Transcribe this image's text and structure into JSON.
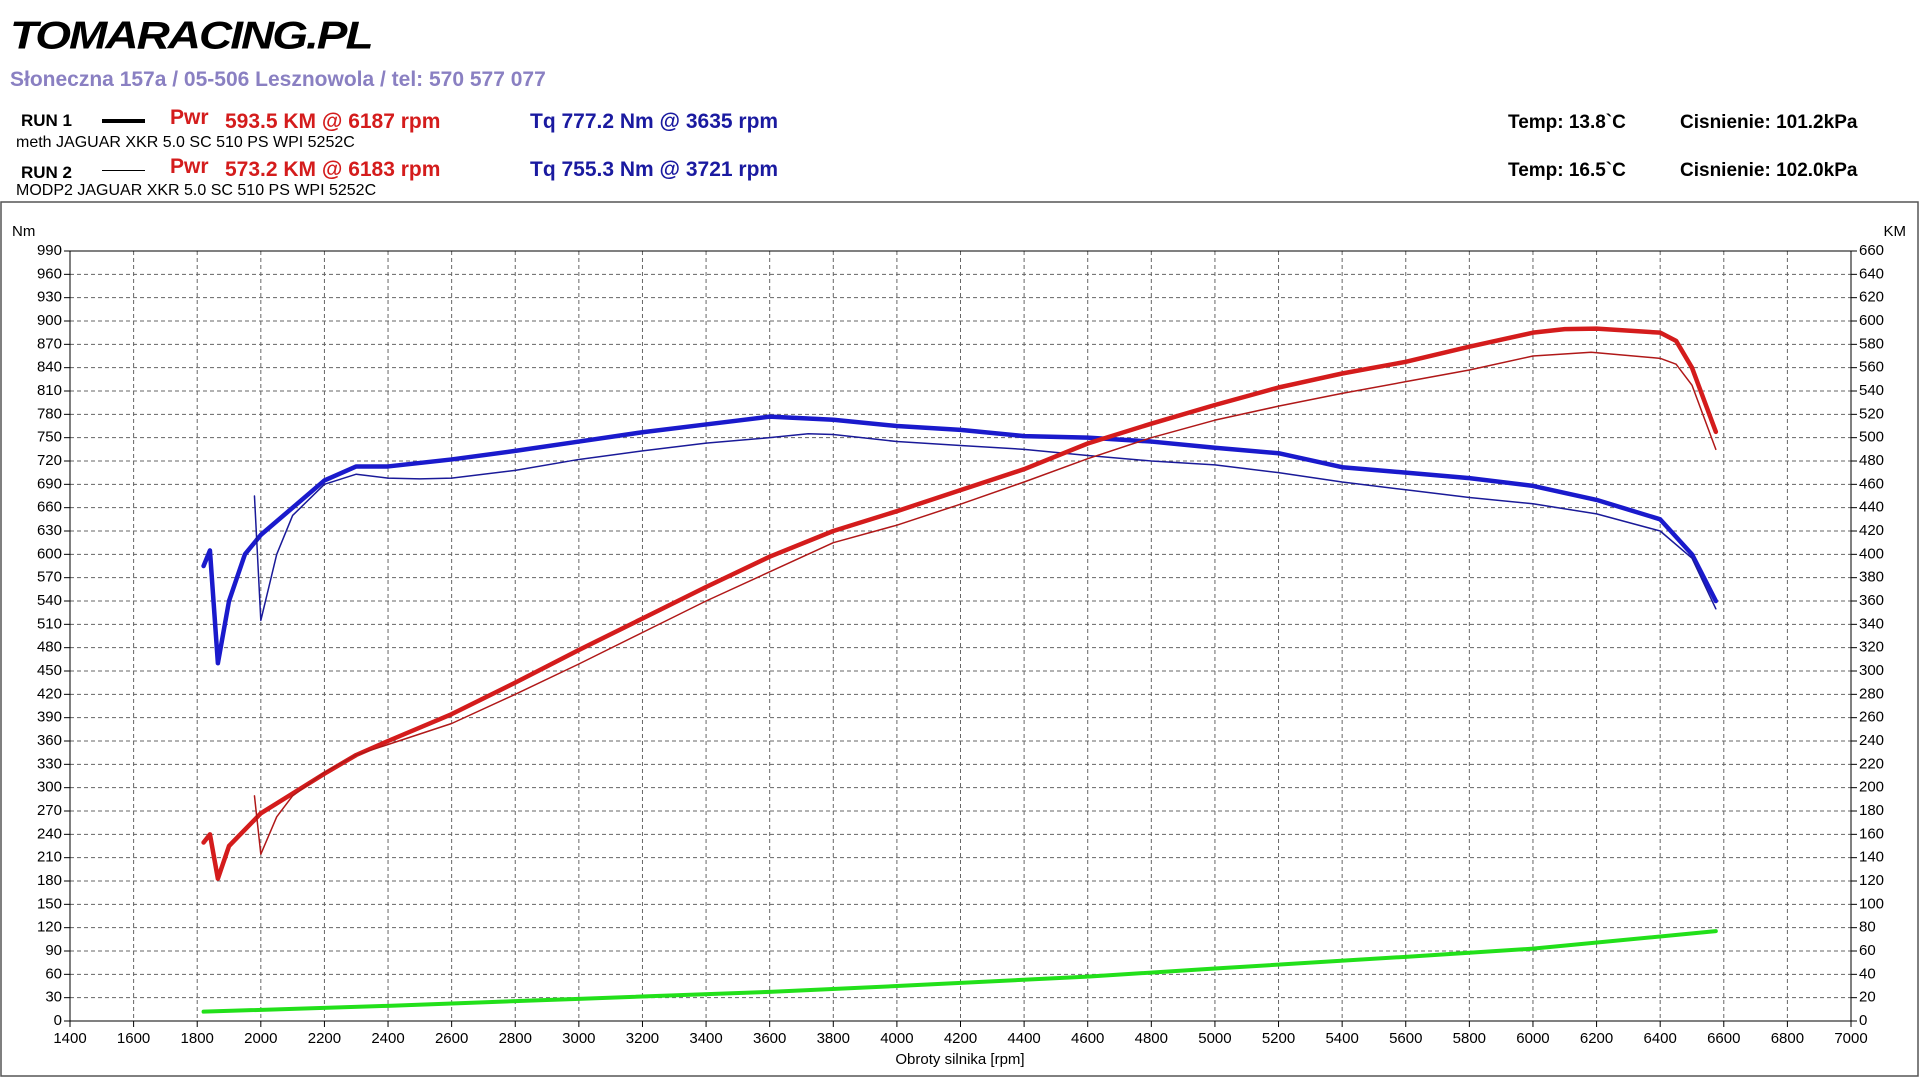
{
  "header": {
    "logo": "TOMARACING.PL",
    "address": "Słoneczna 157a / 05-506 Lesznowola / tel: 570 577 077",
    "runs": [
      {
        "label": "RUN 1",
        "pwr_label": "Pwr",
        "pwr": "593.5 KM @ 6187 rpm",
        "tq": "Tq 777.2 Nm @ 3635 rpm",
        "description": "meth JAGUAR XKR 5.0 SC 510 PS WPI 5252C",
        "temp": "Temp: 13.8`C",
        "pressure": "Cisnienie: 101.2kPa"
      },
      {
        "label": "RUN 2",
        "pwr_label": "Pwr",
        "pwr": "573.2 KM @ 6183 rpm",
        "tq": "Tq 755.3 Nm @ 3721 rpm",
        "description": "MODP2 JAGUAR XKR 5.0 SC 510 PS WPI 5252C",
        "temp": "Temp: 16.5`C",
        "pressure": "Cisnienie: 102.0kPa"
      }
    ]
  },
  "chart_data": {
    "type": "line",
    "xlabel": "Obroty silnika [rpm]",
    "ylabel": "Nm",
    "y2label": "KM",
    "grid": true,
    "xlim": [
      1400,
      7000
    ],
    "xticks": [
      1400,
      1600,
      1800,
      2000,
      2200,
      2400,
      2600,
      2800,
      3000,
      3200,
      3400,
      3600,
      3800,
      4000,
      4200,
      4400,
      4600,
      4800,
      5000,
      5200,
      5400,
      5600,
      5800,
      6000,
      6200,
      6400,
      6600,
      6800,
      7000
    ],
    "ylim": [
      0,
      990
    ],
    "yticks": [
      0,
      30,
      60,
      90,
      120,
      150,
      180,
      210,
      240,
      270,
      300,
      330,
      360,
      390,
      420,
      450,
      480,
      510,
      540,
      570,
      600,
      630,
      660,
      690,
      720,
      750,
      780,
      810,
      840,
      870,
      900,
      930,
      960,
      990
    ],
    "y2lim": [
      0,
      660
    ],
    "y2ticks": [
      0,
      20,
      40,
      60,
      80,
      100,
      120,
      140,
      160,
      180,
      200,
      220,
      240,
      260,
      280,
      300,
      320,
      340,
      360,
      380,
      400,
      420,
      440,
      460,
      480,
      500,
      520,
      540,
      560,
      580,
      600,
      620,
      640,
      660
    ],
    "series": [
      {
        "color": "#1a1acc",
        "width": 4.5,
        "axis": "y",
        "x": [
          1820,
          1840,
          1865,
          1900,
          1950,
          2000,
          2100,
          2200,
          2300,
          2400,
          2600,
          2800,
          3000,
          3200,
          3400,
          3600,
          3800,
          4000,
          4200,
          4400,
          4600,
          4800,
          5000,
          5200,
          5400,
          5600,
          5800,
          6000,
          6200,
          6400,
          6500,
          6575
        ],
        "values": [
          585,
          605,
          460,
          540,
          600,
          625,
          660,
          695,
          713,
          713,
          722,
          733,
          745,
          757,
          767,
          777,
          773,
          765,
          760,
          752,
          750,
          745,
          737,
          730,
          712,
          705,
          698,
          688,
          670,
          645,
          600,
          540
        ]
      },
      {
        "color": "#1a1a99",
        "width": 1.5,
        "axis": "y",
        "x": [
          1980,
          2000,
          2050,
          2100,
          2200,
          2300,
          2400,
          2500,
          2600,
          2800,
          3000,
          3200,
          3400,
          3600,
          3721,
          3800,
          4000,
          4200,
          4400,
          4600,
          4800,
          5000,
          5200,
          5400,
          5600,
          5800,
          6000,
          6200,
          6400,
          6500,
          6575
        ],
        "values": [
          675,
          515,
          600,
          650,
          690,
          703,
          698,
          697,
          698,
          708,
          722,
          733,
          743,
          750,
          755,
          754,
          745,
          740,
          735,
          727,
          720,
          715,
          705,
          693,
          683,
          673,
          665,
          652,
          630,
          595,
          530
        ]
      },
      {
        "color": "#d41c1c",
        "width": 4.5,
        "axis": "y2",
        "x": [
          1820,
          1840,
          1865,
          1900,
          2000,
          2100,
          2200,
          2300,
          2400,
          2600,
          2800,
          3000,
          3200,
          3400,
          3600,
          3800,
          4000,
          4200,
          4400,
          4600,
          4800,
          5000,
          5200,
          5400,
          5600,
          5800,
          6000,
          6100,
          6200,
          6400,
          6450,
          6500,
          6575
        ],
        "values": [
          153,
          160,
          122,
          150,
          178,
          195,
          212,
          228,
          240,
          263,
          290,
          318,
          345,
          372,
          398,
          420,
          437,
          455,
          473,
          495,
          512,
          528,
          543,
          555,
          565,
          578,
          590,
          593,
          593.5,
          590,
          583,
          560,
          505
        ]
      },
      {
        "color": "#b01818",
        "width": 1.5,
        "axis": "y2",
        "x": [
          1980,
          2000,
          2050,
          2100,
          2200,
          2300,
          2400,
          2600,
          2800,
          3000,
          3200,
          3400,
          3600,
          3800,
          4000,
          4200,
          4400,
          4600,
          4800,
          5000,
          5200,
          5400,
          5600,
          5800,
          6000,
          6183,
          6400,
          6450,
          6500,
          6575
        ],
        "values": [
          193,
          143,
          175,
          193,
          213,
          228,
          237,
          255,
          280,
          306,
          333,
          360,
          385,
          410,
          425,
          443,
          462,
          482,
          500,
          515,
          527,
          538,
          548,
          558,
          570,
          573.2,
          568,
          563,
          545,
          490
        ]
      },
      {
        "color": "#22e01a",
        "width": 4,
        "axis": "y2",
        "x": [
          1820,
          2400,
          3000,
          3600,
          4000,
          4600,
          5000,
          5600,
          6000,
          6575
        ],
        "values": [
          8,
          13,
          19,
          25,
          30,
          38,
          45,
          55,
          62,
          77
        ]
      }
    ]
  }
}
